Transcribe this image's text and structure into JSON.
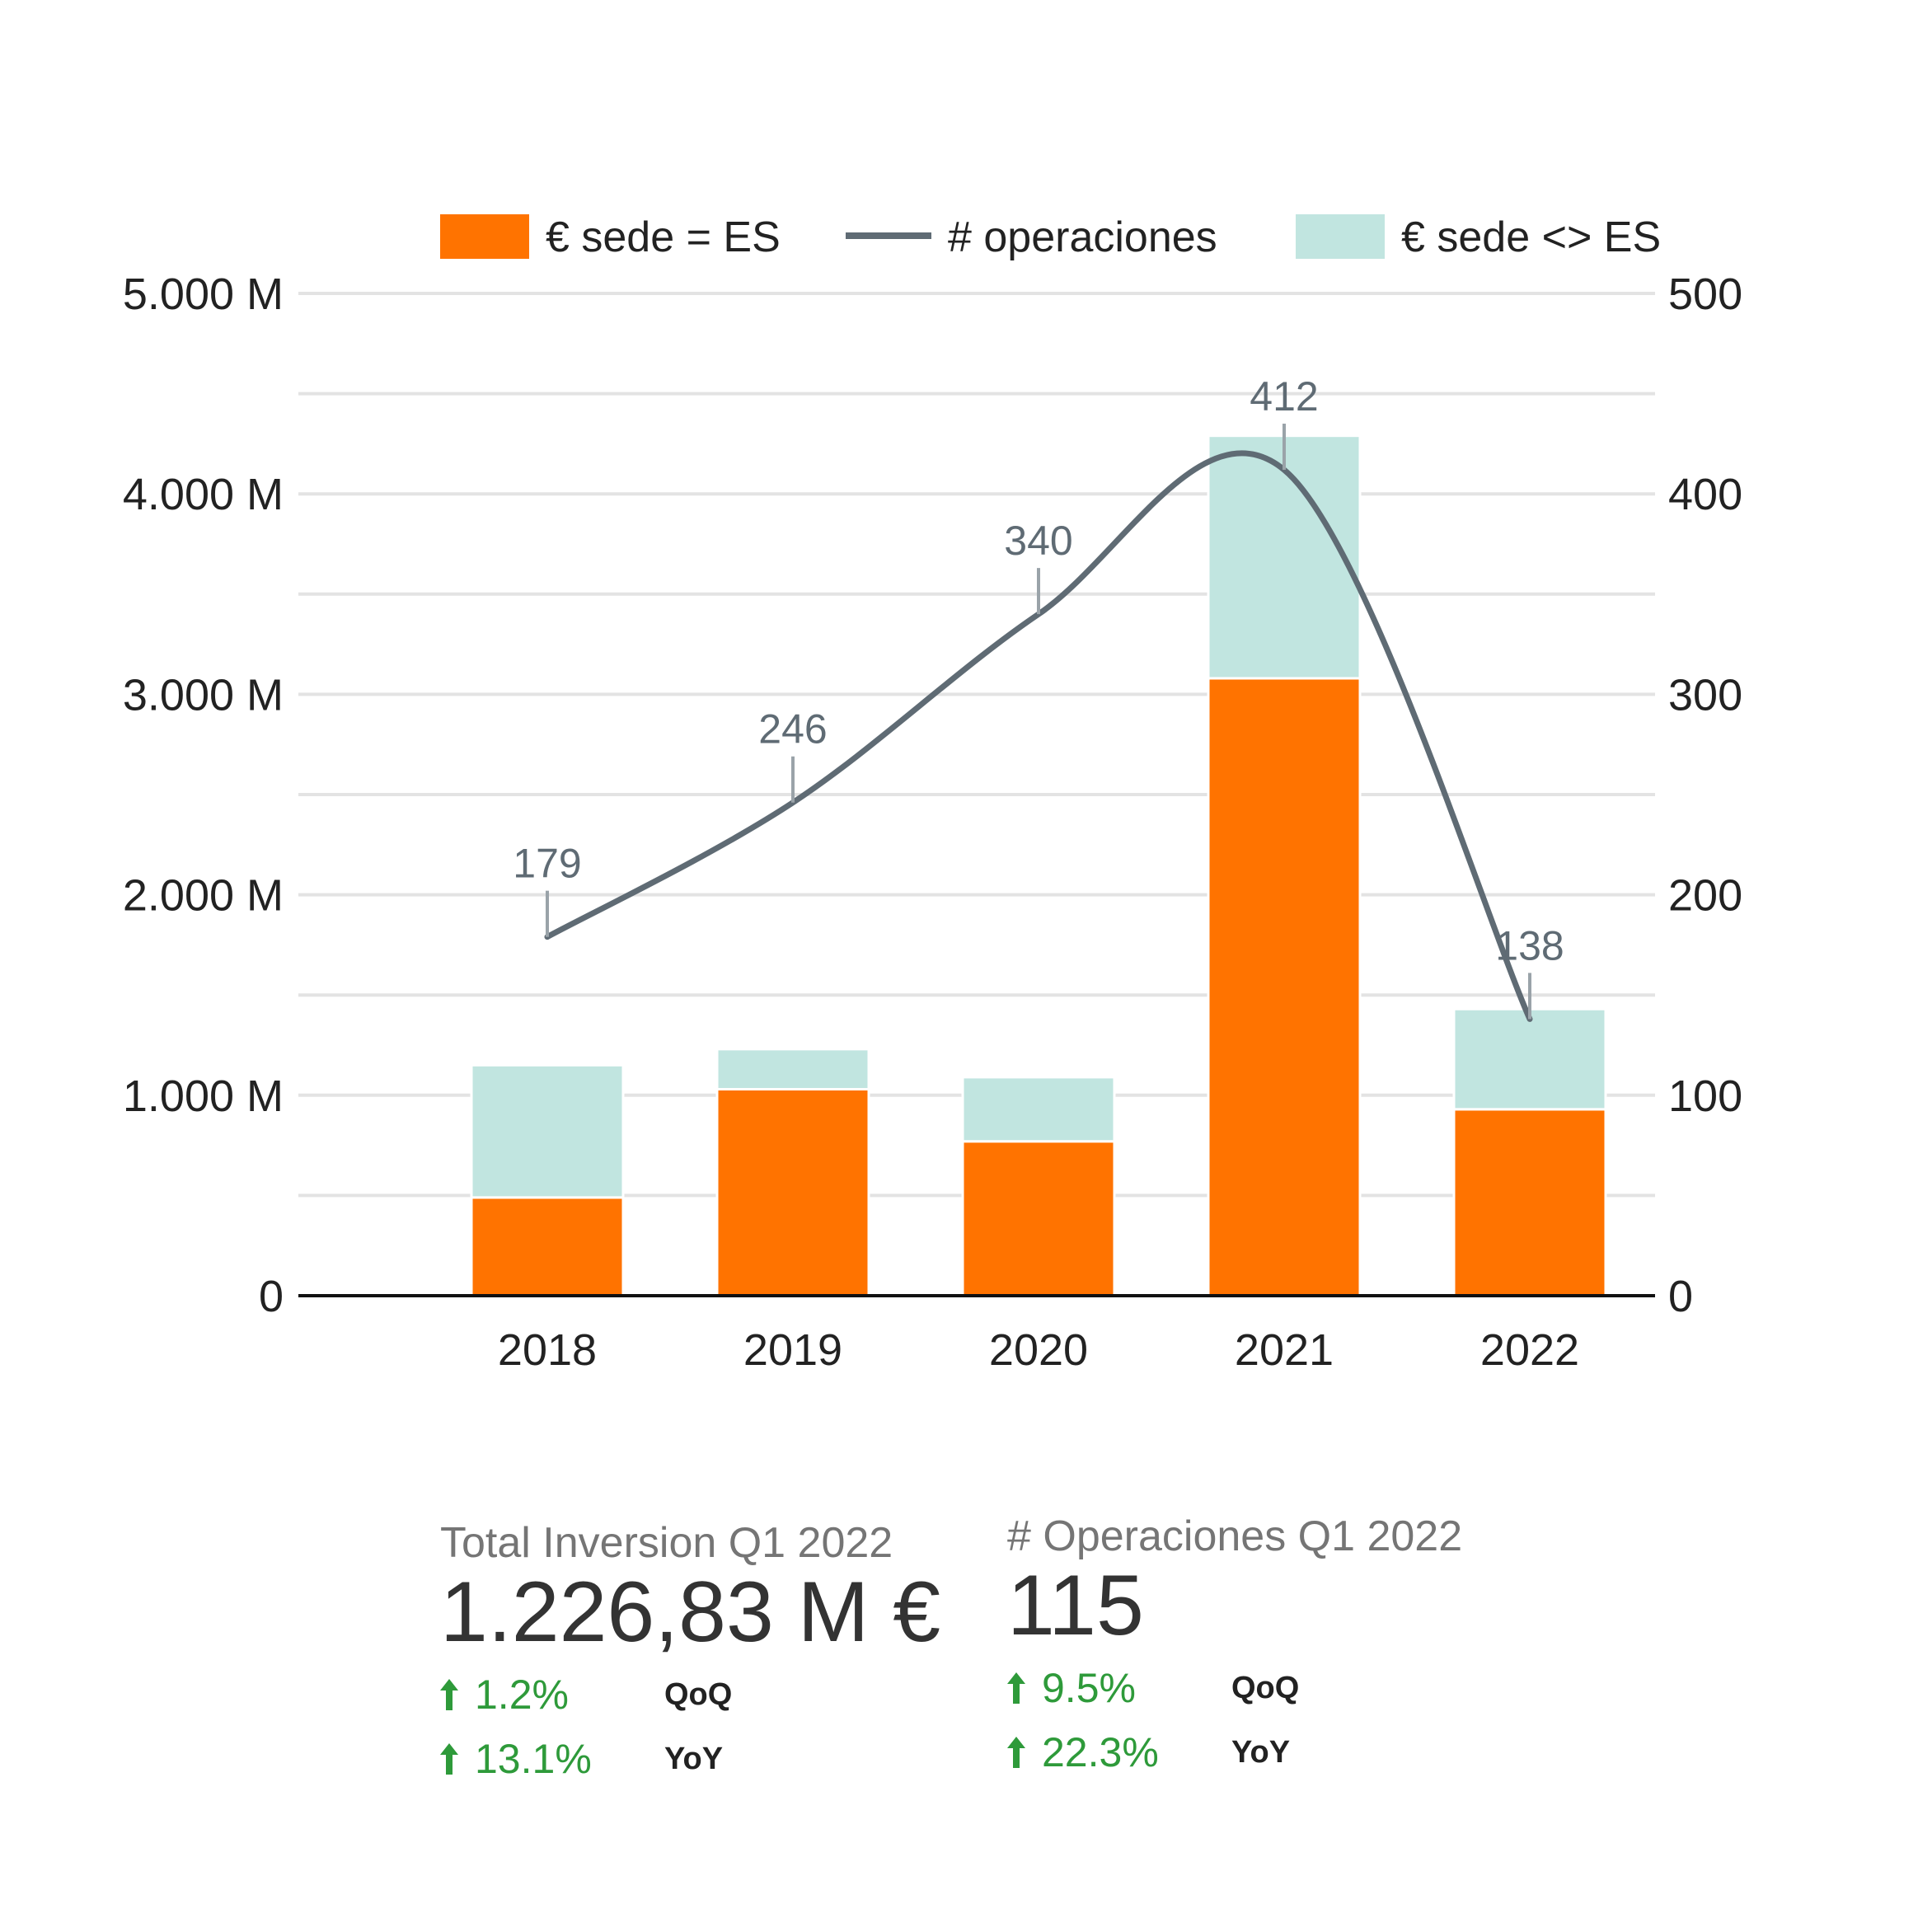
{
  "chart_data": {
    "type": "bar",
    "stacked": true,
    "categories": [
      "2018",
      "2019",
      "2020",
      "2021",
      "2022"
    ],
    "series": [
      {
        "name": "€ sede = ES",
        "kind": "bar",
        "color": "#ff7300",
        "values": [
          490,
          1030,
          770,
          3080,
          930
        ]
      },
      {
        "name": "€ sede <> ES",
        "kind": "bar",
        "color": "#c1e5e0",
        "values": [
          660,
          200,
          320,
          1210,
          500
        ]
      },
      {
        "name": "# operaciones",
        "kind": "line",
        "axis": "right",
        "color": "#5f6b74",
        "values": [
          179,
          246,
          340,
          412,
          138
        ]
      }
    ],
    "line_labels": [
      "179",
      "246",
      "340",
      "412",
      "138"
    ],
    "y_left": {
      "range": [
        0,
        5000
      ],
      "ticks": [
        "0",
        "1.000 M",
        "2.000 M",
        "3.000 M",
        "4.000 M",
        "5.000 M"
      ]
    },
    "y_right": {
      "range": [
        0,
        500
      ],
      "ticks": [
        "0",
        "100",
        "200",
        "300",
        "400",
        "500"
      ]
    },
    "grid": true,
    "legend_position": "top"
  },
  "kpis": {
    "investment": {
      "title": "Total Inversion Q1 2022",
      "value": "1.226,83 M €",
      "qoq": "1.2%",
      "qoq_label": "QoQ",
      "yoy": "13.1%",
      "yoy_label": "YoY"
    },
    "operations": {
      "title": "# Operaciones Q1 2022",
      "value": "115",
      "qoq": "9.5%",
      "qoq_label": "QoQ",
      "yoy": "22.3%",
      "yoy_label": "YoY"
    },
    "trend_color": "#2e9a3a"
  }
}
